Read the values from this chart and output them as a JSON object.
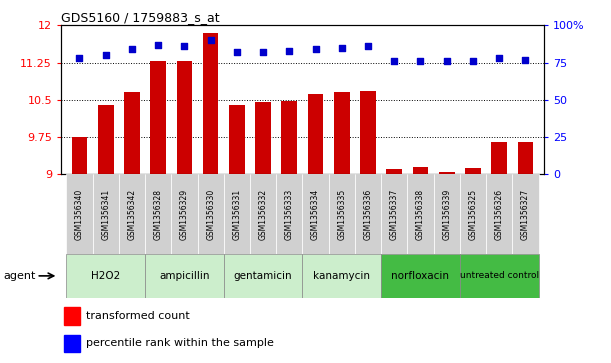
{
  "title": "GDS5160 / 1759883_s_at",
  "samples": [
    "GSM1356340",
    "GSM1356341",
    "GSM1356342",
    "GSM1356328",
    "GSM1356329",
    "GSM1356330",
    "GSM1356331",
    "GSM1356332",
    "GSM1356333",
    "GSM1356334",
    "GSM1356335",
    "GSM1356336",
    "GSM1356337",
    "GSM1356338",
    "GSM1356339",
    "GSM1356325",
    "GSM1356326",
    "GSM1356327"
  ],
  "transformed_count": [
    9.75,
    10.4,
    10.65,
    11.28,
    11.28,
    11.85,
    10.4,
    10.45,
    10.47,
    10.62,
    10.65,
    10.68,
    9.1,
    9.15,
    9.05,
    9.12,
    9.65,
    9.65
  ],
  "percentile_rank": [
    78,
    80,
    84,
    87,
    86,
    90,
    82,
    82,
    83,
    84,
    85,
    86,
    76,
    76,
    76,
    76,
    78,
    77
  ],
  "groups": [
    {
      "label": "H2O2",
      "start": 0,
      "end": 2,
      "dark": false
    },
    {
      "label": "ampicillin",
      "start": 3,
      "end": 5,
      "dark": false
    },
    {
      "label": "gentamicin",
      "start": 6,
      "end": 8,
      "dark": false
    },
    {
      "label": "kanamycin",
      "start": 9,
      "end": 11,
      "dark": false
    },
    {
      "label": "norfloxacin",
      "start": 12,
      "end": 14,
      "dark": true
    },
    {
      "label": "untreated control",
      "start": 15,
      "end": 17,
      "dark": true
    }
  ],
  "ylim_left": [
    9.0,
    12.0
  ],
  "ylim_right": [
    0,
    100
  ],
  "yticks_left": [
    9.0,
    9.75,
    10.5,
    11.25,
    12.0
  ],
  "ytick_labels_left": [
    "9",
    "9.75",
    "10.5",
    "11.25",
    "12"
  ],
  "yticks_right": [
    0,
    25,
    50,
    75,
    100
  ],
  "ytick_labels_right": [
    "0",
    "25",
    "50",
    "75",
    "100%"
  ],
  "hlines": [
    9.75,
    10.5,
    11.25
  ],
  "bar_color": "#cc0000",
  "dot_color": "#0000cc",
  "bar_width": 0.6,
  "group_color_light": "#cceecc",
  "group_color_dark": "#44bb44",
  "legend_bar_label": "transformed count",
  "legend_dot_label": "percentile rank within the sample"
}
